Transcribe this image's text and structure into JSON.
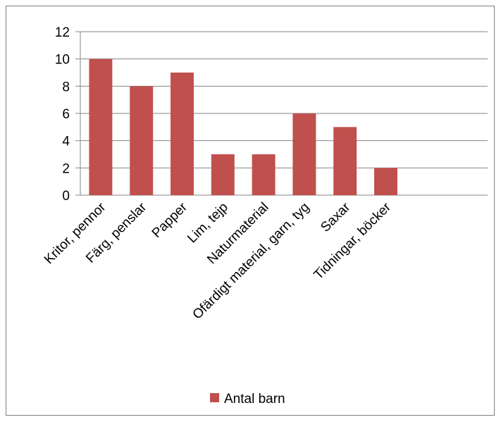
{
  "chart_data": {
    "type": "bar",
    "categories": [
      "Kritor, pennor",
      "Färg, penslar",
      "Papper",
      "Lim, tejp",
      "Naturmaterial",
      "Ofärdigt material, garn, tyg",
      "Saxar",
      "Tidningar, böcker",
      "",
      ""
    ],
    "series": [
      {
        "name": "Antal barn",
        "values": [
          10,
          8,
          9,
          3,
          3,
          6,
          5,
          2,
          null,
          null
        ],
        "color": "#c0504d"
      }
    ],
    "ylim": [
      0,
      12
    ],
    "yticks": [
      "0",
      "2",
      "4",
      "6",
      "8",
      "10",
      "12"
    ],
    "grid": true,
    "legend": "bottom"
  },
  "colors": {
    "bar": "#c0504d",
    "grid": "#868686",
    "frame": "#7f7f7f"
  }
}
